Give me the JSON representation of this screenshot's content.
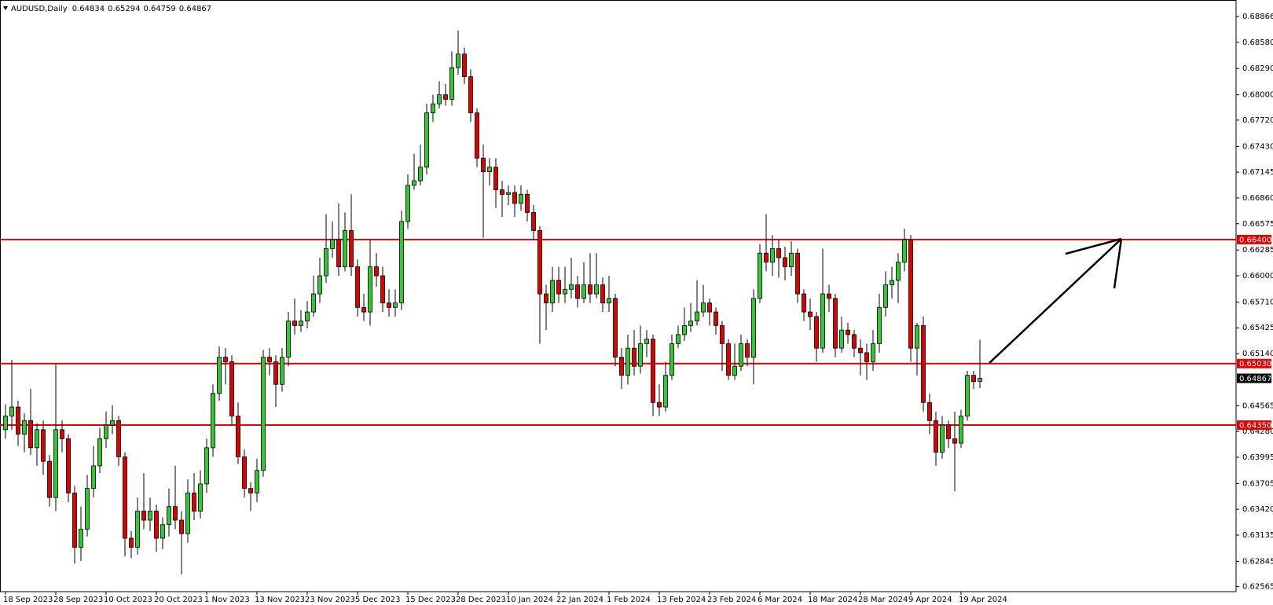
{
  "chart_data": {
    "type": "candlestick",
    "title": "AUDUSD,Daily",
    "up_color": "#32c832",
    "down_color": "#e00000",
    "categories": [
      "18 Sep 2023",
      null,
      null,
      null,
      null,
      null,
      null,
      null,
      "28 Sep 2023",
      null,
      null,
      null,
      null,
      null,
      null,
      null,
      "10 Oct 2023",
      null,
      null,
      null,
      null,
      null,
      null,
      null,
      "20 Oct 2023",
      null,
      null,
      null,
      null,
      null,
      null,
      null,
      "1 Nov 2023",
      null,
      null,
      null,
      null,
      null,
      null,
      null,
      "13 Nov 2023",
      null,
      null,
      null,
      null,
      null,
      null,
      null,
      "23 Nov 2023",
      null,
      null,
      null,
      null,
      null,
      null,
      null,
      "5 Dec 2023",
      null,
      null,
      null,
      null,
      null,
      null,
      null,
      "15 Dec 2023",
      null,
      null,
      null,
      null,
      null,
      null,
      null,
      "28 Dec 2023",
      null,
      null,
      null,
      null,
      null,
      null,
      null,
      "10 Jan 2024",
      null,
      null,
      null,
      null,
      null,
      null,
      null,
      "22 Jan 2024",
      null,
      null,
      null,
      null,
      null,
      null,
      null,
      "1 Feb 2024",
      null,
      null,
      null,
      null,
      null,
      null,
      null,
      "13 Feb 2024",
      null,
      null,
      null,
      null,
      null,
      null,
      null,
      "23 Feb 2024",
      null,
      null,
      null,
      null,
      null,
      null,
      null,
      "6 Mar 2024",
      null,
      null,
      null,
      null,
      null,
      null,
      null,
      "18 Mar 2024",
      null,
      null,
      null,
      null,
      null,
      null,
      null,
      "28 Mar 2024",
      null,
      null,
      null,
      null,
      null,
      null,
      null,
      "9 Apr 2024",
      null,
      null,
      null,
      null,
      null,
      null,
      null,
      "19 Apr 2024",
      null,
      null,
      null
    ],
    "open": [
      0.643,
      0.6445,
      0.6455,
      0.6425,
      0.644,
      0.641,
      0.643,
      0.6395,
      0.6355,
      0.643,
      0.642,
      0.636,
      0.63,
      0.632,
      0.6365,
      0.639,
      0.642,
      0.6435,
      0.644,
      0.64,
      0.631,
      0.63,
      0.634,
      0.633,
      0.634,
      0.631,
      0.6325,
      0.6345,
      0.633,
      0.6315,
      0.636,
      0.634,
      0.637,
      0.641,
      0.647,
      0.651,
      0.6505,
      0.6445,
      0.64,
      0.6365,
      0.636,
      0.6385,
      0.651,
      0.6505,
      0.648,
      0.651,
      0.655,
      0.6545,
      0.655,
      0.656,
      0.658,
      0.66,
      0.663,
      0.664,
      0.661,
      0.665,
      0.661,
      0.6565,
      0.656,
      0.661,
      0.66,
      0.657,
      0.6565,
      0.657,
      0.666,
      0.67,
      0.6705,
      0.672,
      0.678,
      0.679,
      0.68,
      0.6795,
      0.683,
      0.6845,
      0.682,
      0.678,
      0.673,
      0.6715,
      0.672,
      0.6695,
      0.669,
      0.6692,
      0.668,
      0.669,
      0.667,
      0.665,
      0.658,
      0.657,
      0.6595,
      0.658,
      0.6585,
      0.659,
      0.6575,
      0.659,
      0.658,
      0.659,
      0.657,
      0.6575,
      0.651,
      0.649,
      0.652,
      0.65,
      0.6525,
      0.653,
      0.646,
      0.6455,
      0.649,
      0.6525,
      0.6535,
      0.6545,
      0.655,
      0.656,
      0.657,
      0.656,
      0.6545,
      0.6525,
      0.649,
      0.65,
      0.6525,
      0.651,
      0.6575,
      0.6625,
      0.6615,
      0.663,
      0.662,
      0.661,
      0.6625,
      0.658,
      0.656,
      0.6555,
      0.652,
      0.658,
      0.6575,
      0.652,
      0.654,
      0.6535,
      0.652,
      0.6515,
      0.6505,
      0.6525,
      0.6565,
      0.659,
      0.6595,
      0.6615,
      0.664,
      0.652,
      0.6545,
      0.646,
      0.644,
      0.6405,
      0.6435,
      0.642,
      0.6415,
      0.6445,
      0.649,
      0.64834
    ],
    "high": [
      0.6458,
      0.6507,
      0.6462,
      0.6448,
      0.6475,
      0.6437,
      0.644,
      0.6402,
      0.6502,
      0.644,
      0.6425,
      0.6368,
      0.6345,
      0.638,
      0.6412,
      0.6432,
      0.645,
      0.6457,
      0.6445,
      0.6405,
      0.6318,
      0.6355,
      0.6382,
      0.6355,
      0.6347,
      0.6333,
      0.6365,
      0.639,
      0.634,
      0.6375,
      0.6382,
      0.6385,
      0.642,
      0.648,
      0.6522,
      0.652,
      0.6512,
      0.646,
      0.6408,
      0.6372,
      0.6398,
      0.6518,
      0.652,
      0.6512,
      0.652,
      0.656,
      0.6575,
      0.6562,
      0.6572,
      0.66,
      0.662,
      0.6668,
      0.666,
      0.668,
      0.667,
      0.669,
      0.6618,
      0.658,
      0.664,
      0.6625,
      0.661,
      0.6585,
      0.6585,
      0.6672,
      0.6712,
      0.6735,
      0.6745,
      0.679,
      0.68,
      0.6815,
      0.6812,
      0.6848,
      0.6871,
      0.6852,
      0.6828,
      0.6785,
      0.6745,
      0.673,
      0.673,
      0.6705,
      0.67,
      0.67,
      0.67,
      0.6695,
      0.6678,
      0.6655,
      0.659,
      0.661,
      0.661,
      0.661,
      0.662,
      0.66,
      0.6615,
      0.6625,
      0.6625,
      0.6598,
      0.66,
      0.658,
      0.652,
      0.6535,
      0.654,
      0.6545,
      0.654,
      0.6535,
      0.648,
      0.6505,
      0.6535,
      0.6545,
      0.6565,
      0.657,
      0.6595,
      0.659,
      0.6575,
      0.6565,
      0.655,
      0.653,
      0.6525,
      0.6535,
      0.653,
      0.6585,
      0.6635,
      0.6668,
      0.6645,
      0.664,
      0.6632,
      0.6638,
      0.663,
      0.6585,
      0.6575,
      0.656,
      0.663,
      0.659,
      0.658,
      0.6555,
      0.6548,
      0.654,
      0.653,
      0.6525,
      0.654,
      0.658,
      0.6605,
      0.661,
      0.6625,
      0.6652,
      0.6645,
      0.6548,
      0.6555,
      0.647,
      0.645,
      0.6445,
      0.644,
      0.645,
      0.6452,
      0.6495,
      0.6495,
      0.65294
    ],
    "low": [
      0.642,
      0.643,
      0.6412,
      0.6405,
      0.6402,
      0.639,
      0.638,
      0.6345,
      0.634,
      0.6405,
      0.635,
      0.6282,
      0.6285,
      0.6312,
      0.6355,
      0.6382,
      0.641,
      0.6425,
      0.639,
      0.629,
      0.6288,
      0.6292,
      0.632,
      0.6318,
      0.6295,
      0.6298,
      0.6312,
      0.632,
      0.627,
      0.6305,
      0.633,
      0.6332,
      0.636,
      0.64,
      0.6462,
      0.648,
      0.6435,
      0.6392,
      0.6355,
      0.634,
      0.635,
      0.6378,
      0.649,
      0.6455,
      0.6472,
      0.65,
      0.6535,
      0.6538,
      0.6542,
      0.6555,
      0.657,
      0.6592,
      0.662,
      0.66,
      0.6605,
      0.66,
      0.6555,
      0.655,
      0.6545,
      0.6588,
      0.656,
      0.6555,
      0.6555,
      0.6562,
      0.6652,
      0.6695,
      0.67,
      0.6712,
      0.677,
      0.6785,
      0.6788,
      0.6788,
      0.6822,
      0.6812,
      0.677,
      0.672,
      0.6642,
      0.67,
      0.6675,
      0.6665,
      0.6678,
      0.6665,
      0.6672,
      0.666,
      0.664,
      0.6525,
      0.654,
      0.656,
      0.657,
      0.657,
      0.6575,
      0.6565,
      0.657,
      0.657,
      0.6575,
      0.656,
      0.656,
      0.65,
      0.6475,
      0.648,
      0.649,
      0.6492,
      0.651,
      0.6445,
      0.6445,
      0.645,
      0.6485,
      0.652,
      0.6528,
      0.6538,
      0.6545,
      0.6555,
      0.6545,
      0.6535,
      0.6495,
      0.6485,
      0.6485,
      0.6495,
      0.65,
      0.648,
      0.657,
      0.6605,
      0.66,
      0.6598,
      0.6595,
      0.66,
      0.657,
      0.655,
      0.654,
      0.6505,
      0.6515,
      0.656,
      0.651,
      0.6515,
      0.6525,
      0.651,
      0.649,
      0.6485,
      0.6495,
      0.6515,
      0.6555,
      0.6575,
      0.657,
      0.6605,
      0.6505,
      0.649,
      0.645,
      0.6425,
      0.639,
      0.6398,
      0.641,
      0.6362,
      0.641,
      0.644,
      0.6475,
      0.64759
    ],
    "close": [
      0.6445,
      0.6455,
      0.6425,
      0.644,
      0.641,
      0.643,
      0.6395,
      0.6355,
      0.643,
      0.642,
      0.636,
      0.63,
      0.632,
      0.6365,
      0.639,
      0.642,
      0.6435,
      0.644,
      0.64,
      0.631,
      0.63,
      0.634,
      0.633,
      0.634,
      0.631,
      0.6325,
      0.6345,
      0.633,
      0.6315,
      0.636,
      0.634,
      0.637,
      0.641,
      0.647,
      0.651,
      0.6505,
      0.6445,
      0.64,
      0.6365,
      0.636,
      0.6385,
      0.651,
      0.6505,
      0.648,
      0.651,
      0.655,
      0.6545,
      0.655,
      0.656,
      0.658,
      0.66,
      0.663,
      0.664,
      0.661,
      0.665,
      0.661,
      0.6565,
      0.656,
      0.661,
      0.66,
      0.657,
      0.6565,
      0.657,
      0.666,
      0.67,
      0.6705,
      0.672,
      0.678,
      0.679,
      0.68,
      0.6795,
      0.683,
      0.6845,
      0.682,
      0.678,
      0.673,
      0.6715,
      0.672,
      0.6695,
      0.669,
      0.6692,
      0.668,
      0.669,
      0.667,
      0.665,
      0.658,
      0.657,
      0.6595,
      0.658,
      0.6585,
      0.659,
      0.6575,
      0.659,
      0.658,
      0.659,
      0.657,
      0.6575,
      0.651,
      0.649,
      0.652,
      0.65,
      0.6525,
      0.653,
      0.646,
      0.6455,
      0.649,
      0.6525,
      0.6535,
      0.6545,
      0.655,
      0.656,
      0.657,
      0.656,
      0.6545,
      0.6525,
      0.649,
      0.65,
      0.6525,
      0.651,
      0.6575,
      0.6625,
      0.6615,
      0.663,
      0.662,
      0.661,
      0.6625,
      0.658,
      0.656,
      0.6555,
      0.652,
      0.658,
      0.6575,
      0.652,
      0.654,
      0.6535,
      0.652,
      0.6515,
      0.6505,
      0.6525,
      0.6565,
      0.659,
      0.6595,
      0.6615,
      0.664,
      0.652,
      0.6545,
      0.646,
      0.644,
      0.6405,
      0.6435,
      0.642,
      0.6415,
      0.6445,
      0.649,
      0.6483,
      0.64867
    ],
    "ylim": [
      0.6251,
      0.6903
    ],
    "yticks": [
      0.68866,
      {
        "value": 0.6858,
        "label": "0.68580"
      },
      {
        "value": 0.6829,
        "label": "0.68290"
      },
      {
        "value": 0.68,
        "label": "0.68000"
      },
      {
        "value": 0.6772,
        "label": "0.67720"
      },
      {
        "value": 0.6743,
        "label": "0.67430"
      },
      0.67145,
      {
        "value": 0.6686,
        "label": "0.66860"
      },
      0.66575,
      0.66285,
      {
        "value": 0.66,
        "label": "0.66000"
      },
      {
        "value": 0.6571,
        "label": "0.65710"
      },
      0.65425,
      {
        "value": 0.6514,
        "label": "0.65140"
      },
      0.64565,
      {
        "value": 0.6428,
        "label": "0.64280"
      },
      0.63995,
      0.63705,
      {
        "value": 0.6342,
        "label": "0.63420"
      },
      0.63135,
      0.62845,
      0.62565
    ],
    "levels": [
      {
        "value": 0.664,
        "label": "0.66400"
      },
      {
        "value": 0.6503,
        "label": "0.65030"
      },
      {
        "value": 0.6435,
        "label": "0.64350"
      }
    ],
    "level_color": "#e00000"
  }
}
